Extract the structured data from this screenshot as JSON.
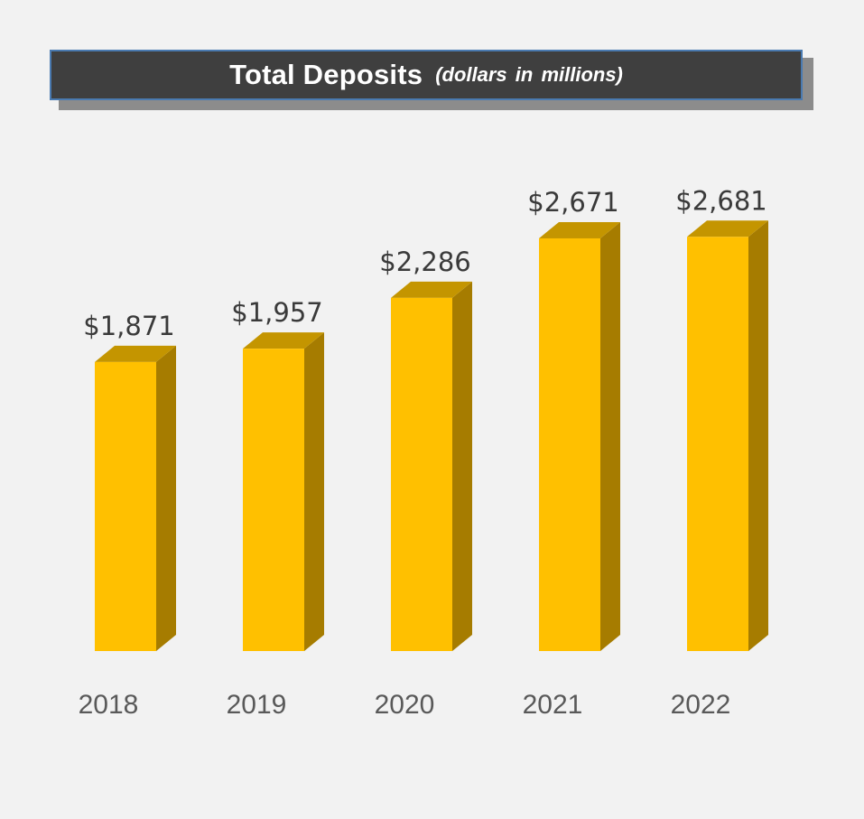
{
  "chart_data": {
    "type": "bar",
    "title": "Total Deposits",
    "subtitle": "(dollars in millions)",
    "categories": [
      "2018",
      "2019",
      "2020",
      "2021",
      "2022"
    ],
    "series": [
      {
        "values": [
          1871,
          1957,
          2286,
          2671,
          2681
        ],
        "data_labels": [
          "$1,871",
          "$1,957",
          "$2,286",
          "$2,671",
          "$2,681"
        ]
      }
    ],
    "xlabel": "",
    "ylabel": "",
    "ylim": [
      0,
      2700
    ],
    "grid": false,
    "legend": "none",
    "style": "3d-column"
  },
  "colors": {
    "bar_front": "#ffc000",
    "bar_side": "#a67c00",
    "bar_top": "#c49500",
    "title_bg": "#3f3f3f",
    "title_border": "#4a7ab0",
    "title_shadow": "#8c8c8c",
    "background": "#f2f2f2",
    "label_text": "#3a3a3a",
    "category_text": "#595959"
  }
}
